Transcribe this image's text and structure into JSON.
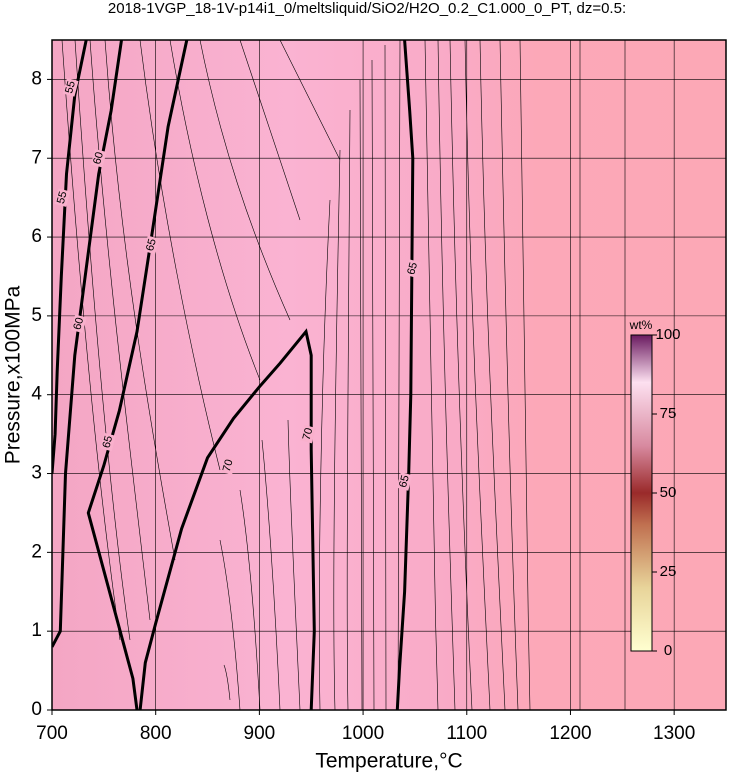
{
  "chart_data": {
    "type": "contour",
    "title": "2018-1VGP_18-1V-p14i1_0/meltsliquid/SiO2/H2O_0.2_C1.000_0_PT, dz=0.5:",
    "x_label": "Temperature,°C",
    "y_label": "Pressure,x100MPa",
    "xlim": [
      700,
      1350
    ],
    "ylim": [
      0,
      8.5
    ],
    "xticks": [
      700,
      800,
      900,
      1000,
      1100,
      1200,
      1300
    ],
    "yticks": [
      0,
      1,
      2,
      3,
      4,
      5,
      6,
      7,
      8
    ],
    "grid": true,
    "contours": [
      {
        "level": 55,
        "x": [
          733,
          722,
          714,
          709,
          705,
          703,
          700
        ],
        "y": [
          8.5,
          7.8,
          6.8,
          5.5,
          4.3,
          3.5,
          3.0
        ],
        "label_at": [
          [
            718,
            7.9
          ],
          [
            710,
            6.5
          ]
        ]
      },
      {
        "level": 60,
        "x": [
          767,
          757,
          745,
          733,
          722,
          713,
          708,
          700
        ],
        "y": [
          8.5,
          7.6,
          6.8,
          5.6,
          4.5,
          3.0,
          1.0,
          0.8
        ],
        "label_at": [
          [
            745,
            7.0
          ],
          [
            726,
            4.9
          ]
        ]
      },
      {
        "level": 65,
        "x": [
          830,
          812,
          796,
          782,
          765,
          750,
          735,
          778,
          782
        ],
        "y": [
          8.5,
          7.4,
          6.0,
          4.8,
          3.8,
          3.1,
          2.5,
          0.4,
          0
        ],
        "label_at": [
          [
            796,
            5.9
          ],
          [
            754,
            3.4
          ]
        ]
      },
      {
        "level": 70,
        "x": [
          785,
          790,
          800,
          825,
          850,
          875,
          900,
          920,
          945,
          950,
          950,
          953,
          950
        ],
        "y": [
          0,
          0.6,
          1.1,
          2.3,
          3.2,
          3.7,
          4.1,
          4.4,
          4.8,
          4.5,
          3.3,
          1.0,
          0
        ],
        "label_at": [
          [
            870,
            3.1
          ],
          [
            947,
            3.5
          ]
        ]
      },
      {
        "level": 65,
        "x": [
          1040,
          1045,
          1048,
          1047,
          1046,
          1044,
          1040,
          1035,
          1033
        ],
        "y": [
          8.5,
          7.6,
          7.0,
          5.5,
          4.0,
          3.0,
          1.5,
          0.5,
          0
        ],
        "label_at": [
          [
            1048,
            5.6
          ],
          [
            1040,
            2.9
          ]
        ]
      }
    ],
    "colorbar": {
      "label": "wt%",
      "lim": [
        0,
        100
      ],
      "ticks": [
        0,
        25,
        50,
        75,
        100
      ]
    }
  }
}
